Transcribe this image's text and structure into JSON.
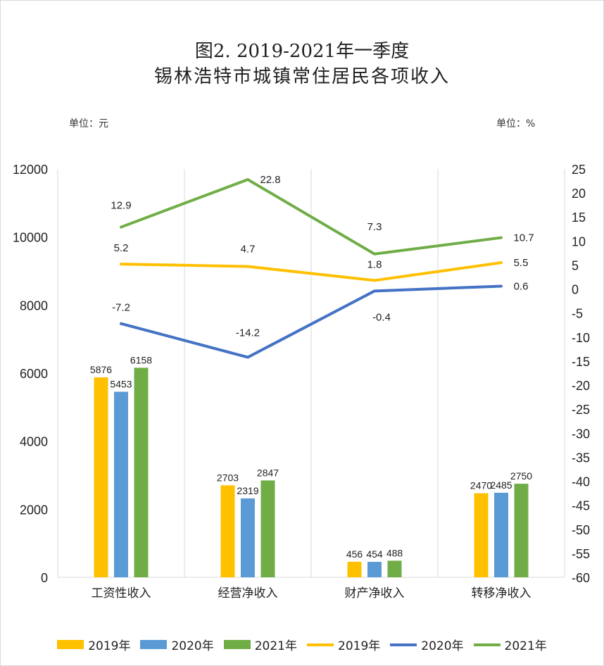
{
  "title_line1": "图2.   2019-2021年一季度",
  "title_line2": "锡林浩特市城镇常住居民各项收入",
  "unit_left": "单位：元",
  "unit_right": "单位：%",
  "colors": {
    "bar2019": "#ffc000",
    "bar2020": "#5b9bd5",
    "bar2021": "#70ad47",
    "line2019": "#ffc000",
    "line2020": "#4472c4",
    "line2021": "#70ad47",
    "grid": "#d9d9d9"
  },
  "legend": [
    {
      "kind": "bar",
      "label": "2019年",
      "color": "#ffc000"
    },
    {
      "kind": "bar",
      "label": "2020年",
      "color": "#5b9bd5"
    },
    {
      "kind": "bar",
      "label": "2021年",
      "color": "#70ad47"
    },
    {
      "kind": "line",
      "label": "2019年",
      "color": "#ffc000"
    },
    {
      "kind": "line",
      "label": "2020年",
      "color": "#4472c4"
    },
    {
      "kind": "line",
      "label": "2021年",
      "color": "#70ad47"
    }
  ],
  "chart_data": {
    "type": "bar",
    "categories": [
      "工资性收入",
      "经营净收入",
      "财产净收入",
      "转移净收入"
    ],
    "ylim_left": [
      0,
      12000
    ],
    "yticks_left": [
      0,
      2000,
      4000,
      6000,
      8000,
      10000,
      12000
    ],
    "ylim_right": [
      -60,
      25
    ],
    "yticks_right": [
      -60,
      -55,
      -50,
      -45,
      -40,
      -35,
      -30,
      -25,
      -20,
      -15,
      -10,
      -5,
      0,
      5,
      10,
      15,
      20,
      25
    ],
    "grid": "vertical",
    "legend_position": "bottom",
    "bar_series": [
      {
        "name": "2019年",
        "values": [
          5876,
          2703,
          456,
          2470
        ]
      },
      {
        "name": "2020年",
        "values": [
          5453,
          2319,
          454,
          2485
        ]
      },
      {
        "name": "2021年",
        "values": [
          6158,
          2847,
          488,
          2750
        ]
      }
    ],
    "line_series": [
      {
        "name": "2019年",
        "axis": "right",
        "values": [
          5.2,
          4.7,
          1.8,
          5.5
        ]
      },
      {
        "name": "2020年",
        "axis": "right",
        "values": [
          -7.2,
          -14.2,
          -0.4,
          0.6
        ]
      },
      {
        "name": "2021年",
        "axis": "right",
        "values": [
          12.9,
          22.8,
          7.3,
          10.7
        ]
      }
    ]
  }
}
